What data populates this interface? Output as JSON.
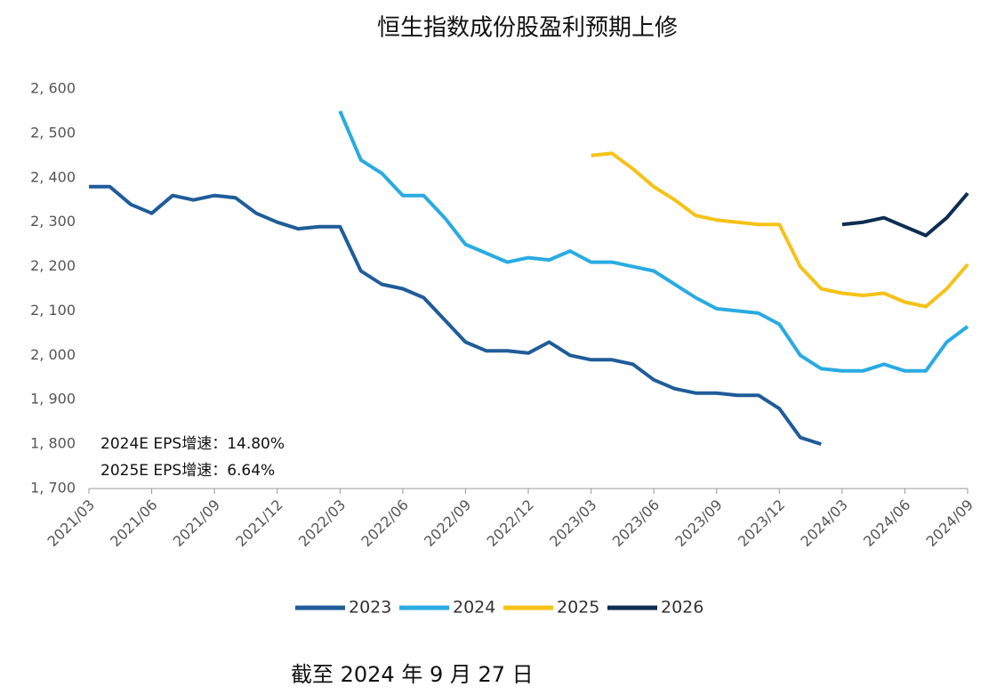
{
  "chart_data": {
    "type": "line",
    "title": "恒生指数成份股盈利预期上修",
    "annotations": [
      "2024E EPS增速：14.80%",
      "2025E EPS增速：6.64%"
    ],
    "footnote": "截至 2024 年 9 月 27 日",
    "categories": [
      "2021/03",
      null,
      null,
      "2021/06",
      null,
      null,
      "2021/09",
      null,
      null,
      "2021/12",
      null,
      null,
      "2022/03",
      null,
      null,
      "2022/06",
      null,
      null,
      "2022/09",
      null,
      null,
      "2022/12",
      null,
      null,
      "2023/03",
      null,
      null,
      "2023/06",
      null,
      null,
      "2023/09",
      null,
      null,
      "2023/12",
      null,
      null,
      "2024/03",
      null,
      null,
      "2024/06",
      null,
      null,
      "2024/09"
    ],
    "ylim": [
      1700,
      2600
    ],
    "yticks": [
      {
        "value": 1700,
        "label": "1, 700"
      },
      {
        "value": 1800,
        "label": "1, 800"
      },
      {
        "value": 1900,
        "label": "1, 900"
      },
      {
        "value": 2000,
        "label": "2, 000"
      },
      {
        "value": 2100,
        "label": "2, 100"
      },
      {
        "value": 2200,
        "label": "2, 200"
      },
      {
        "value": 2300,
        "label": "2, 300"
      },
      {
        "value": 2400,
        "label": "2, 400"
      },
      {
        "value": 2500,
        "label": "2, 500"
      },
      {
        "value": 2600,
        "label": "2, 600"
      }
    ],
    "grid": false,
    "legend": "bottom",
    "series": [
      {
        "name": "2023",
        "color": "#1f5c99",
        "values": [
          2380,
          2380,
          2340,
          2320,
          2360,
          2350,
          2360,
          2355,
          2320,
          2300,
          2285,
          2290,
          2290,
          2190,
          2160,
          2150,
          2130,
          2080,
          2030,
          2010,
          2010,
          2005,
          2030,
          2000,
          1990,
          1990,
          1980,
          1945,
          1925,
          1915,
          1915,
          1910,
          1910,
          1880,
          1815,
          1800,
          null,
          null,
          null,
          null,
          null,
          null,
          null
        ]
      },
      {
        "name": "2024",
        "color": "#29abe2",
        "values": [
          null,
          null,
          null,
          null,
          null,
          null,
          null,
          null,
          null,
          null,
          null,
          null,
          2550,
          2440,
          2410,
          2360,
          2360,
          2310,
          2250,
          2230,
          2210,
          2220,
          2215,
          2235,
          2210,
          2210,
          2200,
          2190,
          2160,
          2130,
          2105,
          2100,
          2095,
          2070,
          2000,
          1970,
          1965,
          1965,
          1980,
          1965,
          1965,
          2030,
          2065
        ]
      },
      {
        "name": "2025",
        "color": "#f5c218",
        "values": [
          null,
          null,
          null,
          null,
          null,
          null,
          null,
          null,
          null,
          null,
          null,
          null,
          null,
          null,
          null,
          null,
          null,
          null,
          null,
          null,
          null,
          null,
          null,
          null,
          2450,
          2455,
          2420,
          2380,
          2350,
          2315,
          2305,
          2300,
          2295,
          2295,
          2200,
          2150,
          2140,
          2135,
          2140,
          2120,
          2110,
          2150,
          2205
        ]
      },
      {
        "name": "2026",
        "color": "#0d2d52",
        "values": [
          null,
          null,
          null,
          null,
          null,
          null,
          null,
          null,
          null,
          null,
          null,
          null,
          null,
          null,
          null,
          null,
          null,
          null,
          null,
          null,
          null,
          null,
          null,
          null,
          null,
          null,
          null,
          null,
          null,
          null,
          null,
          null,
          null,
          null,
          null,
          null,
          2295,
          2300,
          2310,
          2290,
          2270,
          2310,
          2365
        ]
      }
    ]
  }
}
